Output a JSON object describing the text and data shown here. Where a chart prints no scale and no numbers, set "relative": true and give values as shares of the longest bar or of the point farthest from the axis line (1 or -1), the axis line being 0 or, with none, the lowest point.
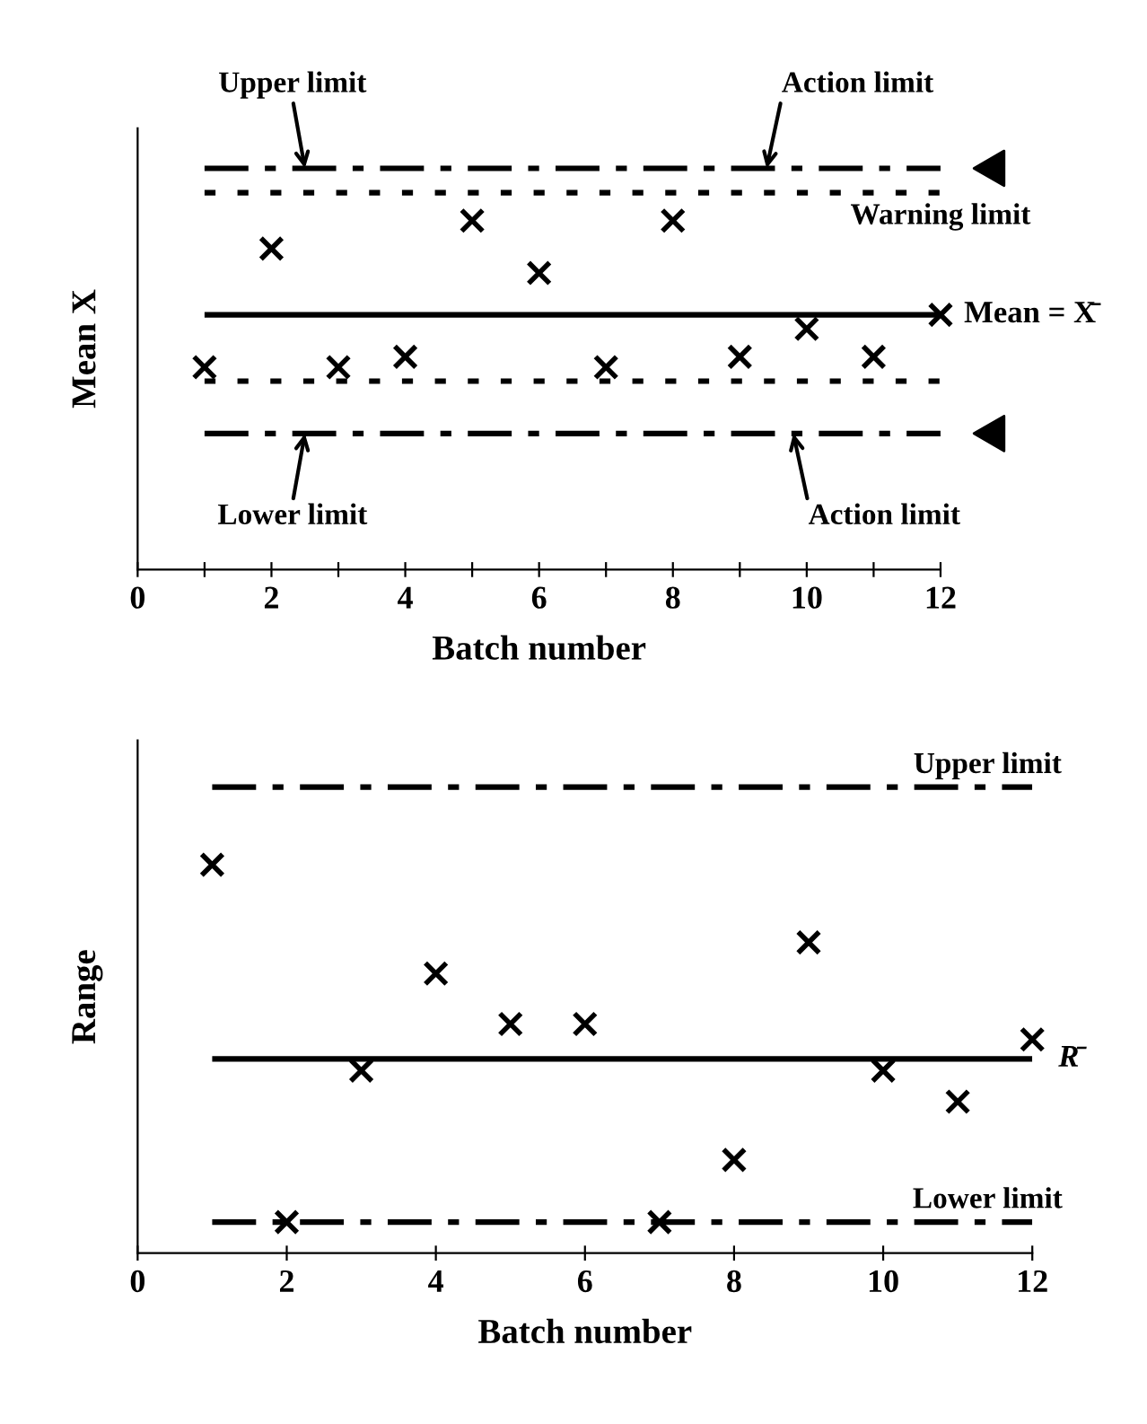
{
  "chart_data": [
    {
      "type": "scatter",
      "xlabel": "Batch number",
      "ylabel": "Mean X",
      "relative": true,
      "marker": "cross",
      "grid": false,
      "legend": false,
      "xlim": [
        0,
        12
      ],
      "xticks": [
        0,
        {
          "value": 1,
          "label": null
        },
        2,
        {
          "value": 3,
          "label": null
        },
        4,
        {
          "value": 5,
          "label": null
        },
        6,
        {
          "value": 7,
          "label": null
        },
        8,
        {
          "value": 9,
          "label": null
        },
        10,
        {
          "value": 11,
          "label": null
        },
        12
      ],
      "series": [
        {
          "color": "#000000",
          "x": [
            1,
            2,
            3,
            4,
            5,
            6,
            7,
            8,
            9,
            10,
            11,
            12
          ],
          "values": [
            0.58,
            0.92,
            0.58,
            0.61,
            1,
            0.85,
            0.58,
            1,
            0.61,
            0.69,
            0.61,
            0.73
          ]
        }
      ],
      "ref_lines": [
        {
          "axis": "y",
          "value": 1.15,
          "line_style": "dashed",
          "color": "#000000"
        },
        {
          "axis": "y",
          "value": 1.08,
          "line_style": "dotted",
          "color": "#000000",
          "label": "Warning limit"
        },
        {
          "axis": "y",
          "value": 0.73,
          "line_style": "solid",
          "color": "#000000",
          "label": "Mean = X̄"
        },
        {
          "axis": "y",
          "value": 0.54,
          "line_style": "dotted",
          "color": "#000000"
        },
        {
          "axis": "y",
          "value": 0.39,
          "line_style": "dashed",
          "color": "#000000"
        }
      ],
      "annotations": [
        {
          "text": "Upper limit",
          "x": 2.5,
          "y": 1.15
        },
        {
          "text": "Action limit",
          "x": 9.4,
          "y": 1.15
        },
        {
          "text": "Lower limit",
          "x": 2.5,
          "y": 0.39
        },
        {
          "text": "Action limit",
          "x": 9.8,
          "y": 0.39
        }
      ]
    },
    {
      "type": "scatter",
      "xlabel": "Batch number",
      "ylabel": "Range",
      "relative": true,
      "marker": "cross",
      "grid": false,
      "legend": false,
      "xlim": [
        0,
        12
      ],
      "xticks": [
        0,
        2,
        4,
        6,
        8,
        10,
        12
      ],
      "series": [
        {
          "color": "#000000",
          "x": [
            1,
            2,
            3,
            4,
            5,
            6,
            7,
            8,
            9,
            10,
            11,
            12
          ],
          "values": [
            1,
            0.08,
            0.47,
            0.72,
            0.59,
            0.59,
            0.08,
            0.24,
            0.8,
            0.47,
            0.39,
            0.55
          ]
        }
      ],
      "ref_lines": [
        {
          "axis": "y",
          "value": 1.2,
          "line_style": "dashed",
          "color": "#000000",
          "label": "Upper limit"
        },
        {
          "axis": "y",
          "value": 0.5,
          "line_style": "solid",
          "color": "#000000",
          "label": "R̄"
        },
        {
          "axis": "y",
          "value": 0.08,
          "line_style": "dashed",
          "color": "#000000",
          "label": "Lower limit"
        }
      ]
    }
  ]
}
